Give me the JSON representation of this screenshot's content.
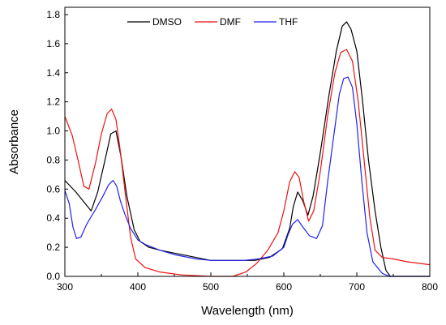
{
  "chart_data": {
    "type": "line",
    "xlabel": "Wavelength (nm)",
    "ylabel": "Absorbance",
    "xlim": [
      300,
      800
    ],
    "ylim": [
      0.0,
      1.85
    ],
    "xticks": [
      300,
      400,
      500,
      600,
      700,
      800
    ],
    "xtick_labels": [
      "300",
      "400",
      "500",
      "600",
      "700",
      "800"
    ],
    "yticks": [
      0.0,
      0.2,
      0.4,
      0.6,
      0.8,
      1.0,
      1.2,
      1.4,
      1.6,
      1.8
    ],
    "ytick_labels": [
      "0.0",
      "0.2",
      "0.4",
      "0.6",
      "0.8",
      "1.0",
      "1.2",
      "1.4",
      "1.6",
      "1.8"
    ],
    "grid": false,
    "legend": "top-left",
    "series": [
      {
        "name": "DMSO",
        "color": "#000000",
        "points": [
          [
            300,
            0.66
          ],
          [
            315,
            0.58
          ],
          [
            336,
            0.45
          ],
          [
            345,
            0.58
          ],
          [
            355,
            0.8
          ],
          [
            363,
            0.98
          ],
          [
            370,
            1.0
          ],
          [
            377,
            0.82
          ],
          [
            385,
            0.55
          ],
          [
            395,
            0.32
          ],
          [
            403,
            0.24
          ],
          [
            415,
            0.2
          ],
          [
            430,
            0.18
          ],
          [
            450,
            0.16
          ],
          [
            480,
            0.13
          ],
          [
            500,
            0.11
          ],
          [
            530,
            0.11
          ],
          [
            560,
            0.11
          ],
          [
            580,
            0.13
          ],
          [
            598,
            0.19
          ],
          [
            608,
            0.33
          ],
          [
            613,
            0.48
          ],
          [
            619,
            0.58
          ],
          [
            626,
            0.52
          ],
          [
            633,
            0.42
          ],
          [
            640,
            0.55
          ],
          [
            650,
            0.85
          ],
          [
            662,
            1.25
          ],
          [
            672,
            1.55
          ],
          [
            680,
            1.72
          ],
          [
            686,
            1.75
          ],
          [
            692,
            1.7
          ],
          [
            700,
            1.55
          ],
          [
            708,
            1.2
          ],
          [
            716,
            0.8
          ],
          [
            725,
            0.45
          ],
          [
            733,
            0.2
          ],
          [
            740,
            0.04
          ],
          [
            746,
            0.0
          ],
          [
            760,
            0.0
          ],
          [
            800,
            0.0
          ]
        ]
      },
      {
        "name": "DMF",
        "color": "#ee1111",
        "points": [
          [
            300,
            1.1
          ],
          [
            310,
            0.97
          ],
          [
            318,
            0.8
          ],
          [
            326,
            0.62
          ],
          [
            333,
            0.6
          ],
          [
            342,
            0.78
          ],
          [
            350,
            0.98
          ],
          [
            358,
            1.12
          ],
          [
            364,
            1.15
          ],
          [
            370,
            1.08
          ],
          [
            376,
            0.86
          ],
          [
            383,
            0.56
          ],
          [
            390,
            0.27
          ],
          [
            397,
            0.12
          ],
          [
            410,
            0.06
          ],
          [
            430,
            0.03
          ],
          [
            460,
            0.01
          ],
          [
            500,
            0.0
          ],
          [
            530,
            0.0
          ],
          [
            548,
            0.03
          ],
          [
            563,
            0.09
          ],
          [
            578,
            0.18
          ],
          [
            592,
            0.3
          ],
          [
            600,
            0.45
          ],
          [
            608,
            0.65
          ],
          [
            615,
            0.72
          ],
          [
            621,
            0.68
          ],
          [
            627,
            0.52
          ],
          [
            634,
            0.38
          ],
          [
            641,
            0.45
          ],
          [
            650,
            0.72
          ],
          [
            660,
            1.1
          ],
          [
            670,
            1.4
          ],
          [
            678,
            1.54
          ],
          [
            686,
            1.56
          ],
          [
            694,
            1.48
          ],
          [
            702,
            1.2
          ],
          [
            710,
            0.8
          ],
          [
            718,
            0.4
          ],
          [
            725,
            0.18
          ],
          [
            735,
            0.13
          ],
          [
            750,
            0.12
          ],
          [
            770,
            0.1
          ],
          [
            800,
            0.08
          ]
        ]
      },
      {
        "name": "THF",
        "color": "#2222ee",
        "points": [
          [
            300,
            0.59
          ],
          [
            306,
            0.5
          ],
          [
            311,
            0.34
          ],
          [
            316,
            0.26
          ],
          [
            322,
            0.27
          ],
          [
            330,
            0.36
          ],
          [
            342,
            0.46
          ],
          [
            352,
            0.55
          ],
          [
            360,
            0.63
          ],
          [
            366,
            0.66
          ],
          [
            371,
            0.62
          ],
          [
            376,
            0.52
          ],
          [
            382,
            0.43
          ],
          [
            390,
            0.33
          ],
          [
            400,
            0.25
          ],
          [
            410,
            0.22
          ],
          [
            430,
            0.18
          ],
          [
            450,
            0.15
          ],
          [
            480,
            0.12
          ],
          [
            500,
            0.11
          ],
          [
            520,
            0.11
          ],
          [
            545,
            0.11
          ],
          [
            565,
            0.12
          ],
          [
            585,
            0.14
          ],
          [
            600,
            0.2
          ],
          [
            606,
            0.29
          ],
          [
            612,
            0.36
          ],
          [
            619,
            0.39
          ],
          [
            626,
            0.34
          ],
          [
            635,
            0.28
          ],
          [
            645,
            0.26
          ],
          [
            653,
            0.35
          ],
          [
            660,
            0.65
          ],
          [
            668,
            0.95
          ],
          [
            676,
            1.25
          ],
          [
            682,
            1.36
          ],
          [
            688,
            1.37
          ],
          [
            694,
            1.3
          ],
          [
            700,
            1.05
          ],
          [
            707,
            0.65
          ],
          [
            714,
            0.3
          ],
          [
            722,
            0.1
          ],
          [
            735,
            0.02
          ],
          [
            745,
            0.0
          ],
          [
            800,
            0.0
          ]
        ]
      }
    ]
  }
}
